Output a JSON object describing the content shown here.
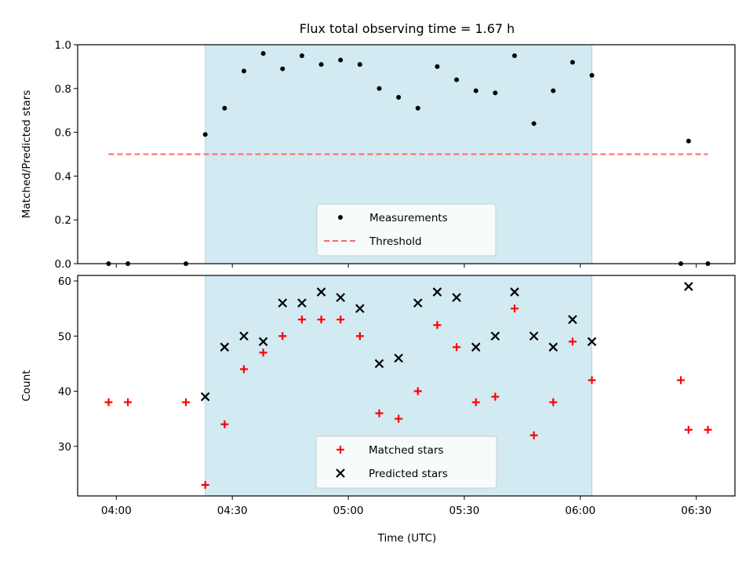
{
  "figure": {
    "title": "Flux total observing time = 1.67 h",
    "xlabel": "Time (UTC)"
  },
  "colors": {
    "span": "#add8e6",
    "measurement": "#000000",
    "threshold": "#ff6666",
    "matched": "#ff0000",
    "predicted": "#000000"
  },
  "chart_data": [
    {
      "type": "scatter",
      "panel": "top",
      "ylabel": "Matched/Predicted stars",
      "xlim": [
        "03:50",
        "06:40"
      ],
      "ylim": [
        0,
        1.0
      ],
      "yticks": [
        0.0,
        0.2,
        0.4,
        0.6,
        0.8,
        1.0
      ],
      "ytick_labels": [
        "0.0",
        "0.2",
        "0.4",
        "0.6",
        "0.8",
        "1.0"
      ],
      "shaded_span": {
        "x": [
          "04:23",
          "06:03"
        ]
      },
      "legend": {
        "placement": "lower center",
        "entries": [
          "Measurements",
          "Threshold"
        ]
      },
      "series": [
        {
          "name": "Measurements",
          "marker": "dot",
          "x": [
            "03:58",
            "04:03",
            "04:18",
            "04:23",
            "04:28",
            "04:33",
            "04:38",
            "04:43",
            "04:48",
            "04:53",
            "04:58",
            "05:03",
            "05:08",
            "05:13",
            "05:18",
            "05:23",
            "05:28",
            "05:33",
            "05:38",
            "05:43",
            "05:48",
            "05:53",
            "05:58",
            "06:03",
            "06:26",
            "06:28",
            "06:33"
          ],
          "y": [
            0,
            0,
            0,
            0.59,
            0.71,
            0.88,
            0.96,
            0.89,
            0.95,
            0.91,
            0.93,
            0.91,
            0.8,
            0.76,
            0.71,
            0.9,
            0.84,
            0.79,
            0.78,
            0.95,
            0.64,
            0.79,
            0.92,
            0.86,
            0,
            0.56,
            0
          ]
        },
        {
          "name": "Threshold",
          "line": "dashed",
          "x": [
            "03:58",
            "06:33"
          ],
          "y": [
            0.5,
            0.5
          ]
        }
      ]
    },
    {
      "type": "scatter",
      "panel": "bottom",
      "ylabel": "Count",
      "xlabel": "Time (UTC)",
      "xlim": [
        "03:50",
        "06:40"
      ],
      "ylim": [
        21,
        61
      ],
      "yticks": [
        30,
        40,
        50,
        60
      ],
      "ytick_labels": [
        "30",
        "40",
        "50",
        "60"
      ],
      "xticks": [
        "04:00",
        "04:30",
        "05:00",
        "05:30",
        "06:00",
        "06:30"
      ],
      "xtick_labels": [
        "04:00",
        "04:30",
        "05:00",
        "05:30",
        "06:00",
        "06:30"
      ],
      "shaded_span": {
        "x": [
          "04:23",
          "06:03"
        ]
      },
      "legend": {
        "placement": "lower center",
        "entries": [
          "Matched stars",
          "Predicted stars"
        ]
      },
      "series": [
        {
          "name": "Matched stars",
          "marker": "plus",
          "x": [
            "03:58",
            "04:03",
            "04:18",
            "04:23",
            "04:28",
            "04:33",
            "04:38",
            "04:43",
            "04:48",
            "04:53",
            "04:58",
            "05:03",
            "05:08",
            "05:13",
            "05:18",
            "05:23",
            "05:28",
            "05:33",
            "05:38",
            "05:43",
            "05:48",
            "05:53",
            "05:58",
            "06:03",
            "06:26",
            "06:28",
            "06:33"
          ],
          "y": [
            38,
            38,
            38,
            23,
            34,
            44,
            47,
            50,
            53,
            53,
            53,
            50,
            36,
            35,
            40,
            52,
            48,
            38,
            39,
            55,
            32,
            38,
            49,
            42,
            42,
            33,
            33
          ]
        },
        {
          "name": "Predicted stars",
          "marker": "x",
          "x": [
            "04:23",
            "04:28",
            "04:33",
            "04:38",
            "04:43",
            "04:48",
            "04:53",
            "04:58",
            "05:03",
            "05:08",
            "05:13",
            "05:18",
            "05:23",
            "05:28",
            "05:33",
            "05:38",
            "05:43",
            "05:48",
            "05:53",
            "05:58",
            "06:03",
            "06:28"
          ],
          "y": [
            39,
            48,
            50,
            49,
            56,
            56,
            58,
            57,
            55,
            45,
            46,
            56,
            58,
            57,
            48,
            50,
            58,
            50,
            48,
            53,
            49,
            59
          ]
        }
      ]
    }
  ]
}
